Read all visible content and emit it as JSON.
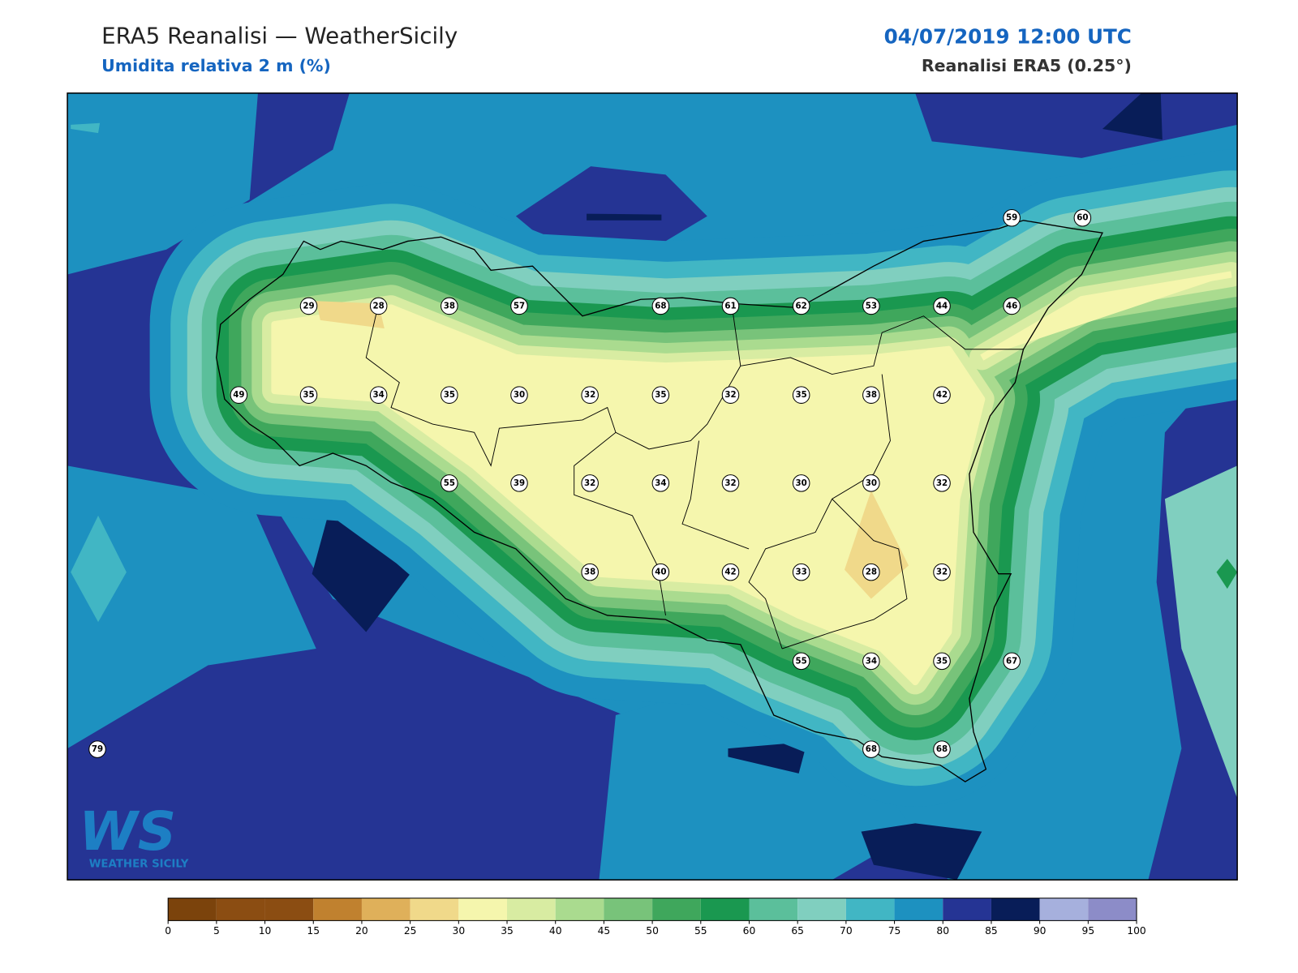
{
  "header": {
    "title": "ERA5 Reanalisi — WeatherSicily",
    "subtitle": "Umidita relativa 2 m (%)",
    "datetime": "04/07/2019 12:00 UTC",
    "source": "Reanalisi ERA5 (0.25°)"
  },
  "logo": {
    "mark": "WS",
    "name": "WEATHER SICILY"
  },
  "stations": [
    59,
    60,
    29,
    28,
    38,
    57,
    68,
    61,
    62,
    53,
    44,
    46,
    49,
    35,
    34,
    35,
    30,
    32,
    35,
    32,
    35,
    38,
    42,
    55,
    39,
    32,
    34,
    32,
    30,
    30,
    32,
    38,
    40,
    42,
    33,
    28,
    32,
    55,
    34,
    35,
    67,
    79,
    68,
    68
  ],
  "colorbar": {
    "ticks": [
      0,
      5,
      10,
      15,
      20,
      25,
      30,
      35,
      40,
      45,
      50,
      55,
      60,
      65,
      70,
      75,
      80,
      85,
      90,
      95,
      100
    ],
    "colors": [
      "#7b430c",
      "#8b4d12",
      "#8b4d12",
      "#c0812f",
      "#dfb05a",
      "#f0d98a",
      "#f5f6ad",
      "#d8eca2",
      "#aadb8f",
      "#78c37a",
      "#3fa75c",
      "#1a9850",
      "#5bbf9b",
      "#80cfbf",
      "#41b6c4",
      "#1d91c0",
      "#253494",
      "#081d58",
      "#a6b0dd",
      "#8c8cc8"
    ]
  }
}
